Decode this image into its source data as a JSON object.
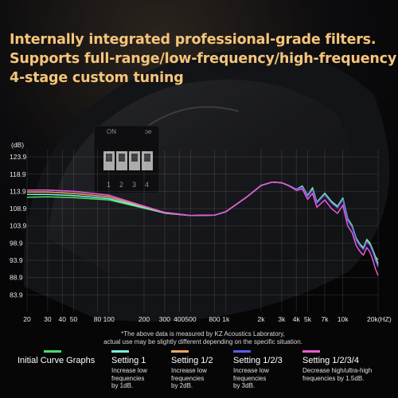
{
  "headline": {
    "line1": "Internally integrated professional-grade filters.",
    "line2": "Supports full-range/low-frequency/high-frequency",
    "line3": "4-stage custom tuning"
  },
  "switch_labels": {
    "on": "ON",
    "numbers": [
      "1",
      "2",
      "3",
      "4"
    ]
  },
  "note": {
    "line1": "*The above data is measured by KZ Acoustics Laboratory,",
    "line2": "actual use may be slightly different depending on the specific situation."
  },
  "legend": [
    {
      "name": "Initial Curve Graphs",
      "desc": [],
      "color": "#4ade6b"
    },
    {
      "name": "Setting 1",
      "desc": [
        "Increase low",
        "frequencies",
        "by 1dB."
      ],
      "color": "#7ef0e0"
    },
    {
      "name": "Setting 1/2",
      "desc": [
        "Increase low",
        "frequencies",
        "by 2dB."
      ],
      "color": "#f0a85a"
    },
    {
      "name": "Setting 1/2/3",
      "desc": [
        "Increase low",
        "frequencies",
        "by 3dB."
      ],
      "color": "#5a5cf5"
    },
    {
      "name": "Setting 1/2/3/4",
      "desc": [
        "Decrease high/ultra-high",
        "frequencies by 1.5dB."
      ],
      "color": "#e85ad8"
    }
  ],
  "chart_data": {
    "type": "line",
    "ylabel": "(dB)",
    "xunit": "(HZ)",
    "xscale": "log",
    "xlim": [
      20,
      20000
    ],
    "ylim": [
      78.9,
      126
    ],
    "ytick_labels": [
      "123.9",
      "118.9",
      "113.9",
      "108.9",
      "103.9",
      "98.9",
      "93.9",
      "88.9",
      "83.9"
    ],
    "yticks": [
      123.9,
      118.9,
      113.9,
      108.9,
      103.9,
      98.9,
      93.9,
      88.9,
      83.9
    ],
    "xtick_labels": [
      "20",
      "30",
      "40",
      "50",
      "80",
      "100",
      "200",
      "300",
      "400",
      "500",
      "800",
      "1k",
      "2k",
      "3k",
      "4k",
      "5k",
      "7k",
      "10k",
      "20k"
    ],
    "xticks": [
      20,
      30,
      40,
      50,
      80,
      100,
      200,
      300,
      400,
      500,
      800,
      1000,
      2000,
      3000,
      4000,
      5000,
      7000,
      10000,
      20000
    ],
    "grid": true,
    "x": [
      20,
      30,
      50,
      100,
      200,
      300,
      500,
      800,
      1000,
      1500,
      2000,
      2500,
      3000,
      3500,
      4000,
      4500,
      5000,
      5500,
      6000,
      7000,
      8000,
      9000,
      10000,
      11000,
      12000,
      13000,
      14000,
      15000,
      16000,
      17000,
      18000,
      19000,
      20000
    ],
    "series": [
      {
        "name": "Initial Curve Graphs",
        "values": [
          112.2,
          112.3,
          112.1,
          111.4,
          109.0,
          107.6,
          106.9,
          107.0,
          108.0,
          112.2,
          115.6,
          116.6,
          116.4,
          115.5,
          114.5,
          115.5,
          112.7,
          115.0,
          110.8,
          113.4,
          111.0,
          109.6,
          112.0,
          106.0,
          104.0,
          100.3,
          98.6,
          97.6,
          100.0,
          99.0,
          97.0,
          95.0,
          94.0
        ]
      },
      {
        "name": "Setting 1",
        "values": [
          113.0,
          113.0,
          112.7,
          111.8,
          109.2,
          107.6,
          106.9,
          107.0,
          108.0,
          112.2,
          115.6,
          116.6,
          116.4,
          115.5,
          114.5,
          115.3,
          112.6,
          114.7,
          110.7,
          113.2,
          110.8,
          109.4,
          111.8,
          105.8,
          103.8,
          100.1,
          98.4,
          97.3,
          99.7,
          98.7,
          96.7,
          94.5,
          93.0
        ]
      },
      {
        "name": "Setting 1/2",
        "values": [
          113.7,
          113.7,
          113.3,
          112.3,
          109.4,
          107.7,
          106.9,
          107.0,
          108.0,
          112.2,
          115.6,
          116.6,
          116.4,
          115.5,
          114.5,
          115.2,
          112.5,
          114.5,
          110.6,
          113.0,
          110.6,
          109.2,
          111.6,
          105.6,
          103.6,
          99.9,
          98.2,
          97.1,
          99.5,
          98.5,
          96.5,
          94.2,
          92.5
        ]
      },
      {
        "name": "Setting 1/2/3",
        "values": [
          114.3,
          114.3,
          113.9,
          112.8,
          109.6,
          107.8,
          106.9,
          107.0,
          108.0,
          112.2,
          115.6,
          116.6,
          116.4,
          115.5,
          114.5,
          115.1,
          112.4,
          114.3,
          110.5,
          112.9,
          110.5,
          109.1,
          111.5,
          105.5,
          103.5,
          99.8,
          98.1,
          97.0,
          99.3,
          98.3,
          96.3,
          93.9,
          92.0
        ]
      },
      {
        "name": "Setting 1/2/3/4",
        "values": [
          114.3,
          114.3,
          113.9,
          112.8,
          109.6,
          107.8,
          106.9,
          107.0,
          108.0,
          112.2,
          115.6,
          116.6,
          116.4,
          115.4,
          114.2,
          114.6,
          111.6,
          113.3,
          109.3,
          111.4,
          108.9,
          107.5,
          109.9,
          103.9,
          101.9,
          98.2,
          96.5,
          95.4,
          97.6,
          96.4,
          94.1,
          91.4,
          89.5
        ]
      }
    ]
  }
}
